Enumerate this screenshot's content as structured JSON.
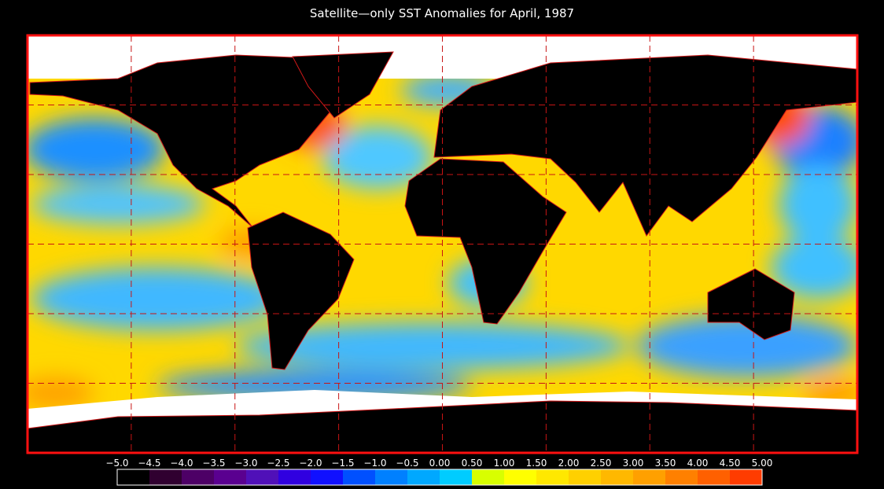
{
  "title": "Satellite—only SST Anomalies for April, 1987",
  "colorbar": {
    "ticks": [
      {
        "value": -5,
        "label": "−5.0"
      },
      {
        "value": -4.5,
        "label": "−4.5"
      },
      {
        "value": -4,
        "label": "−4.0"
      },
      {
        "value": -3.5,
        "label": "−3.5"
      },
      {
        "value": -3,
        "label": "−3.0"
      },
      {
        "value": -2.5,
        "label": "−2.5"
      },
      {
        "value": -2,
        "label": "−2.0"
      },
      {
        "value": -1.5,
        "label": "−1.5"
      },
      {
        "value": -1,
        "label": "−1.0"
      },
      {
        "value": -0.5,
        "label": "−0.5"
      },
      {
        "value": 0,
        "label": "0.00"
      },
      {
        "value": 0.5,
        "label": "0.50"
      },
      {
        "value": 1,
        "label": "1.00"
      },
      {
        "value": 1.5,
        "label": "1.50"
      },
      {
        "value": 2,
        "label": "2.00"
      },
      {
        "value": 2.5,
        "label": "2.50"
      },
      {
        "value": 3,
        "label": "3.00"
      },
      {
        "value": 3.5,
        "label": "3.50"
      },
      {
        "value": 4,
        "label": "4.00"
      },
      {
        "value": 4.5,
        "label": "4.50"
      },
      {
        "value": 5,
        "label": "5.00"
      }
    ],
    "colors": [
      "#000000",
      "#300030",
      "#4d0066",
      "#5a0090",
      "#5010b8",
      "#3000e0",
      "#1010ff",
      "#0050ff",
      "#0080ff",
      "#00a8ff",
      "#00ccff",
      "#d8ff00",
      "#ffff00",
      "#ffe800",
      "#ffd000",
      "#ffb800",
      "#ffa000",
      "#ff8000",
      "#ff6000",
      "#ff3c00",
      "#ff1000"
    ]
  }
}
